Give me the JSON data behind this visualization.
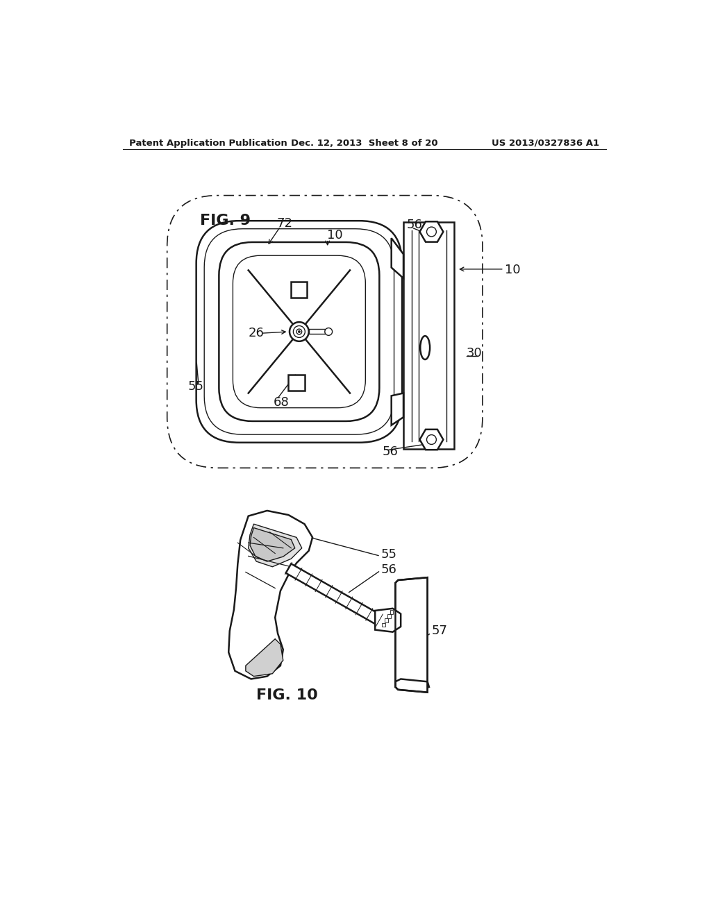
{
  "bg_color": "#ffffff",
  "line_color": "#1a1a1a",
  "header_left": "Patent Application Publication",
  "header_center": "Dec. 12, 2013  Sheet 8 of 20",
  "header_right": "US 2013/0327836 A1",
  "fig9_label": "FIG. 9",
  "fig10_label": "FIG. 10"
}
